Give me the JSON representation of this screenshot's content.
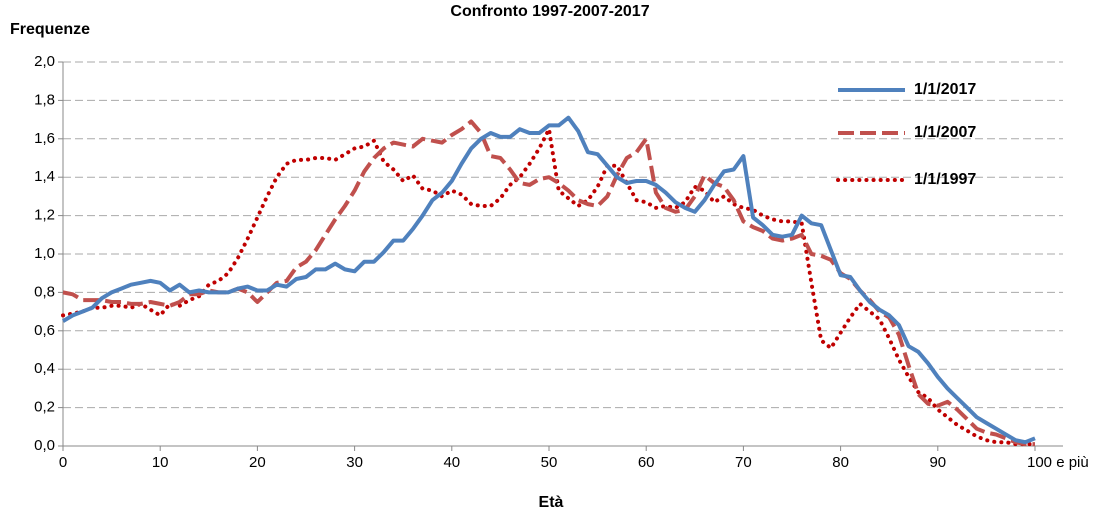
{
  "chart_data": {
    "type": "line",
    "title": "Confronto 1997-2007-2017",
    "y_label": "Frequenze",
    "x_label": "Età",
    "x": [
      0,
      1,
      2,
      3,
      4,
      5,
      6,
      7,
      8,
      9,
      10,
      11,
      12,
      13,
      14,
      15,
      16,
      17,
      18,
      19,
      20,
      21,
      22,
      23,
      24,
      25,
      26,
      27,
      28,
      29,
      30,
      31,
      32,
      33,
      34,
      35,
      36,
      37,
      38,
      39,
      40,
      41,
      42,
      43,
      44,
      45,
      46,
      47,
      48,
      49,
      50,
      51,
      52,
      53,
      54,
      55,
      56,
      57,
      58,
      59,
      60,
      61,
      62,
      63,
      64,
      65,
      66,
      67,
      68,
      69,
      70,
      71,
      72,
      73,
      74,
      75,
      76,
      77,
      78,
      79,
      80,
      81,
      82,
      83,
      84,
      85,
      86,
      87,
      88,
      89,
      90,
      91,
      92,
      93,
      94,
      95,
      96,
      97,
      98,
      99,
      100
    ],
    "series": [
      {
        "name": "1/1/2017",
        "color": "#4f81bd",
        "style": "solid",
        "values": [
          0.65,
          0.68,
          0.7,
          0.72,
          0.77,
          0.8,
          0.82,
          0.84,
          0.85,
          0.86,
          0.85,
          0.81,
          0.84,
          0.8,
          0.81,
          0.8,
          0.8,
          0.8,
          0.82,
          0.83,
          0.81,
          0.81,
          0.84,
          0.83,
          0.87,
          0.88,
          0.92,
          0.92,
          0.95,
          0.92,
          0.91,
          0.96,
          0.96,
          1.01,
          1.07,
          1.07,
          1.13,
          1.2,
          1.28,
          1.32,
          1.38,
          1.47,
          1.55,
          1.6,
          1.63,
          1.61,
          1.61,
          1.65,
          1.63,
          1.63,
          1.67,
          1.67,
          1.71,
          1.64,
          1.53,
          1.52,
          1.46,
          1.4,
          1.37,
          1.38,
          1.38,
          1.36,
          1.32,
          1.27,
          1.24,
          1.22,
          1.28,
          1.36,
          1.43,
          1.44,
          1.51,
          1.19,
          1.15,
          1.1,
          1.09,
          1.1,
          1.2,
          1.16,
          1.15,
          1.02,
          0.89,
          0.88,
          0.81,
          0.75,
          0.71,
          0.68,
          0.63,
          0.52,
          0.49,
          0.43,
          0.36,
          0.3,
          0.25,
          0.2,
          0.15,
          0.12,
          0.09,
          0.06,
          0.03,
          0.02,
          0.04
        ]
      },
      {
        "name": "1/1/2007",
        "color": "#c0504d",
        "style": "dashed",
        "values": [
          0.8,
          0.79,
          0.76,
          0.76,
          0.76,
          0.75,
          0.75,
          0.74,
          0.74,
          0.75,
          0.74,
          0.73,
          0.75,
          0.79,
          0.79,
          0.81,
          0.8,
          0.8,
          0.82,
          0.8,
          0.75,
          0.8,
          0.85,
          0.86,
          0.93,
          0.96,
          1.02,
          1.1,
          1.18,
          1.25,
          1.33,
          1.43,
          1.5,
          1.55,
          1.58,
          1.57,
          1.56,
          1.6,
          1.59,
          1.58,
          1.62,
          1.65,
          1.69,
          1.63,
          1.51,
          1.5,
          1.44,
          1.37,
          1.36,
          1.39,
          1.4,
          1.37,
          1.33,
          1.28,
          1.26,
          1.25,
          1.3,
          1.41,
          1.5,
          1.53,
          1.6,
          1.32,
          1.24,
          1.22,
          1.23,
          1.3,
          1.41,
          1.37,
          1.35,
          1.28,
          1.17,
          1.14,
          1.12,
          1.08,
          1.07,
          1.08,
          1.1,
          1.0,
          0.99,
          0.97,
          0.9,
          0.87,
          0.81,
          0.76,
          0.7,
          0.67,
          0.58,
          0.42,
          0.27,
          0.22,
          0.21,
          0.23,
          0.19,
          0.14,
          0.09,
          0.07,
          0.06,
          0.04,
          0.02,
          0.01,
          0.01
        ]
      },
      {
        "name": "1/1/1997",
        "color": "#c00000",
        "style": "dotted",
        "values": [
          0.68,
          0.69,
          0.7,
          0.72,
          0.72,
          0.73,
          0.73,
          0.72,
          0.74,
          0.71,
          0.68,
          0.74,
          0.73,
          0.76,
          0.78,
          0.84,
          0.86,
          0.9,
          0.98,
          1.08,
          1.19,
          1.3,
          1.4,
          1.47,
          1.49,
          1.49,
          1.5,
          1.5,
          1.49,
          1.52,
          1.55,
          1.56,
          1.59,
          1.48,
          1.44,
          1.38,
          1.41,
          1.34,
          1.33,
          1.3,
          1.33,
          1.31,
          1.26,
          1.25,
          1.25,
          1.29,
          1.36,
          1.4,
          1.47,
          1.55,
          1.65,
          1.33,
          1.29,
          1.25,
          1.28,
          1.35,
          1.46,
          1.46,
          1.37,
          1.28,
          1.27,
          1.24,
          1.25,
          1.24,
          1.27,
          1.35,
          1.33,
          1.27,
          1.3,
          1.26,
          1.24,
          1.23,
          1.2,
          1.18,
          1.17,
          1.17,
          1.16,
          0.85,
          0.55,
          0.51,
          0.59,
          0.67,
          0.74,
          0.7,
          0.66,
          0.56,
          0.45,
          0.36,
          0.28,
          0.25,
          0.19,
          0.15,
          0.11,
          0.08,
          0.05,
          0.03,
          0.02,
          0.02,
          0.01,
          0.01,
          0.01
        ]
      }
    ],
    "xlim": [
      0,
      100
    ],
    "xticks": [
      0,
      10,
      20,
      30,
      40,
      50,
      60,
      70,
      80,
      90,
      {
        "value": 100,
        "label": "100 e più"
      }
    ],
    "ylim": [
      0,
      2
    ],
    "yticks": [
      {
        "value": 0,
        "label": "0,0"
      },
      {
        "value": 0.2,
        "label": "0,2"
      },
      {
        "value": 0.4,
        "label": "0,4"
      },
      {
        "value": 0.6,
        "label": "0,6"
      },
      {
        "value": 0.8,
        "label": "0,8"
      },
      {
        "value": 1,
        "label": "1,0"
      },
      {
        "value": 1.2,
        "label": "1,2"
      },
      {
        "value": 1.4,
        "label": "1,4"
      },
      {
        "value": 1.6,
        "label": "1,6"
      },
      {
        "value": 1.8,
        "label": "1,8"
      },
      {
        "value": 2,
        "label": "2,0"
      }
    ],
    "grid": true,
    "legend": "top-right"
  }
}
